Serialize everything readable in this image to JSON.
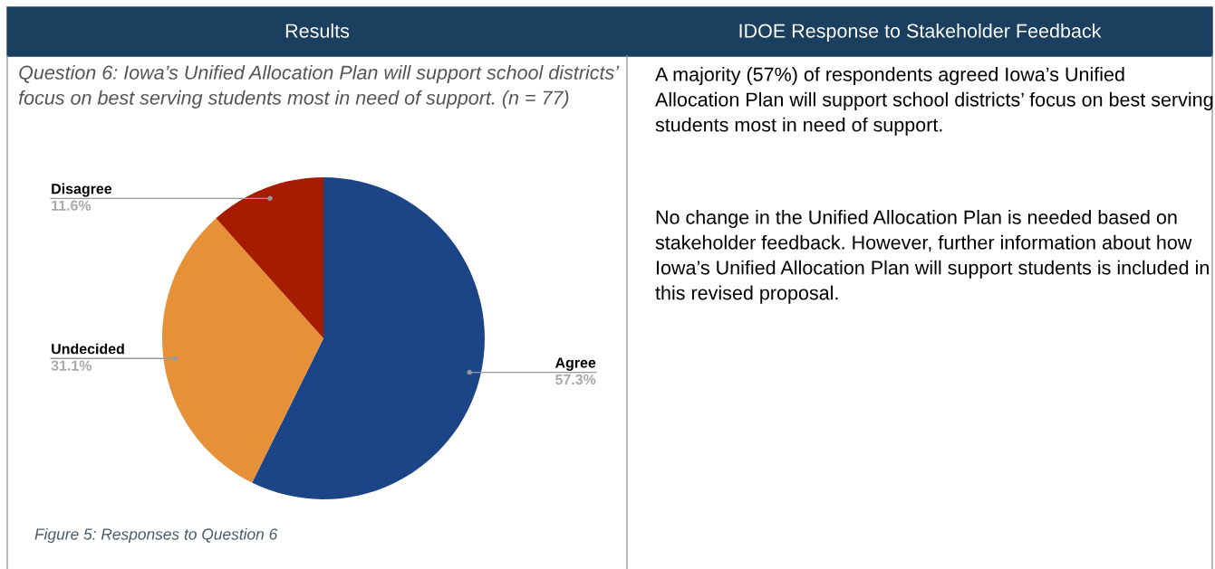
{
  "chart_data": {
    "type": "pie",
    "title": "Question 6: Iowa’s Unified Allocation Plan will support school districts’ focus on best serving students most in need of support. (n = 77)",
    "categories": [
      "Agree",
      "Undecided",
      "Disagree"
    ],
    "values": [
      57.3,
      31.1,
      11.6
    ],
    "value_labels": [
      "57.3%",
      "31.1%",
      "11.6%"
    ],
    "colors": [
      "#1c4587",
      "#e69138",
      "#a61c00"
    ],
    "legend": false,
    "annotations": [
      "Results",
      "IDOE Response to Stakeholder Feedback",
      "Figure 5: Responses to Question 6",
      "A majority (57%) of respondents agreed Iowa’s Unified Allocation Plan will support school districts’ focus on best serving students most in need of support.",
      "No change in the Unified Allocation Plan is needed based on stakeholder feedback. However, further information about how Iowa’s Unified Allocation Plan will support students is included in this revised proposal."
    ]
  }
}
